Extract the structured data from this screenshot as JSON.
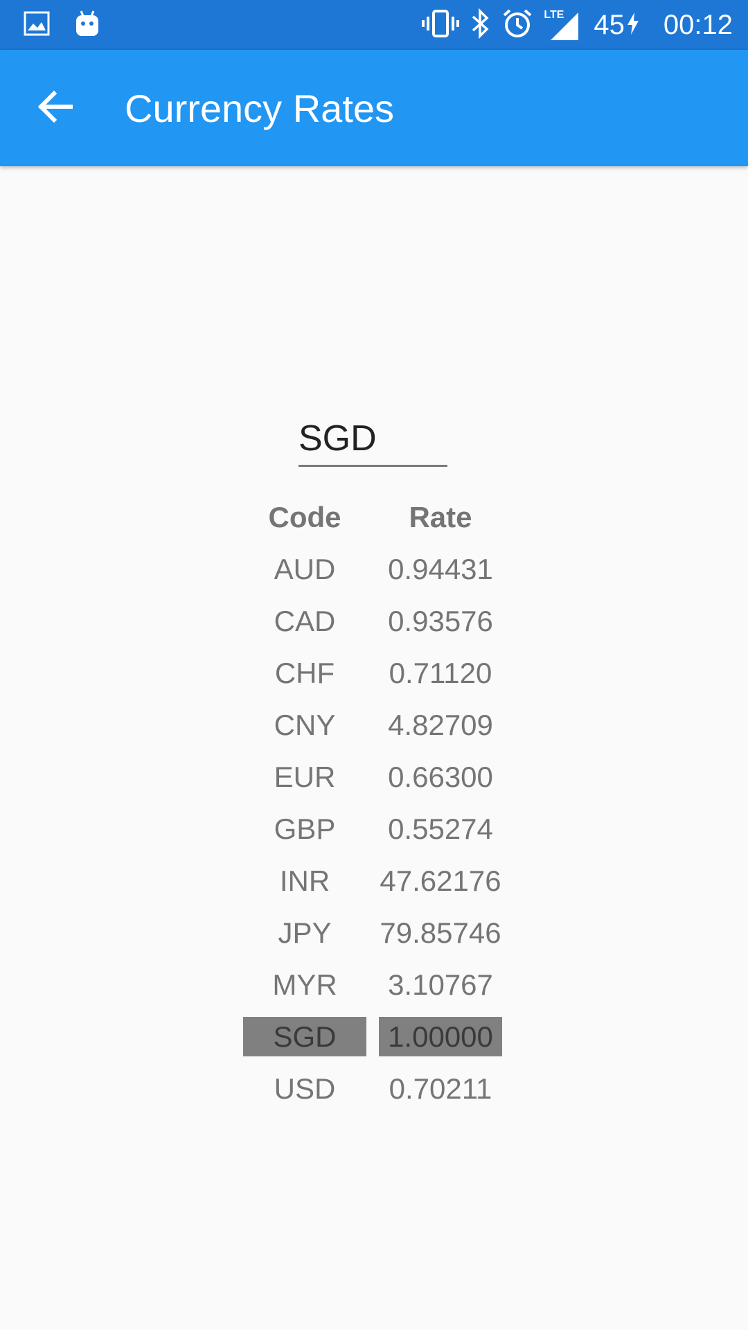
{
  "status_bar": {
    "battery": "45",
    "time": "00:12",
    "network": "LTE",
    "icons": [
      "gallery-icon",
      "android-icon",
      "vibrate-icon",
      "bluetooth-icon",
      "alarm-icon",
      "signal-icon",
      "charging-icon"
    ]
  },
  "app_bar": {
    "title": "Currency Rates",
    "back_icon": "arrow-left-icon",
    "color": "#2196f3"
  },
  "currency_input": {
    "value": "SGD"
  },
  "rates_table": {
    "headers": {
      "code": "Code",
      "rate": "Rate"
    },
    "rows": [
      {
        "code": "AUD",
        "rate": "0.94431"
      },
      {
        "code": "CAD",
        "rate": "0.93576"
      },
      {
        "code": "CHF",
        "rate": "0.71120"
      },
      {
        "code": "CNY",
        "rate": "4.82709"
      },
      {
        "code": "EUR",
        "rate": "0.66300"
      },
      {
        "code": "GBP",
        "rate": "0.55274"
      },
      {
        "code": "INR",
        "rate": "47.62176"
      },
      {
        "code": "JPY",
        "rate": "79.85746"
      },
      {
        "code": "MYR",
        "rate": "3.10767"
      },
      {
        "code": "SGD",
        "rate": "1.00000",
        "selected": true
      },
      {
        "code": "USD",
        "rate": "0.70211"
      }
    ]
  }
}
